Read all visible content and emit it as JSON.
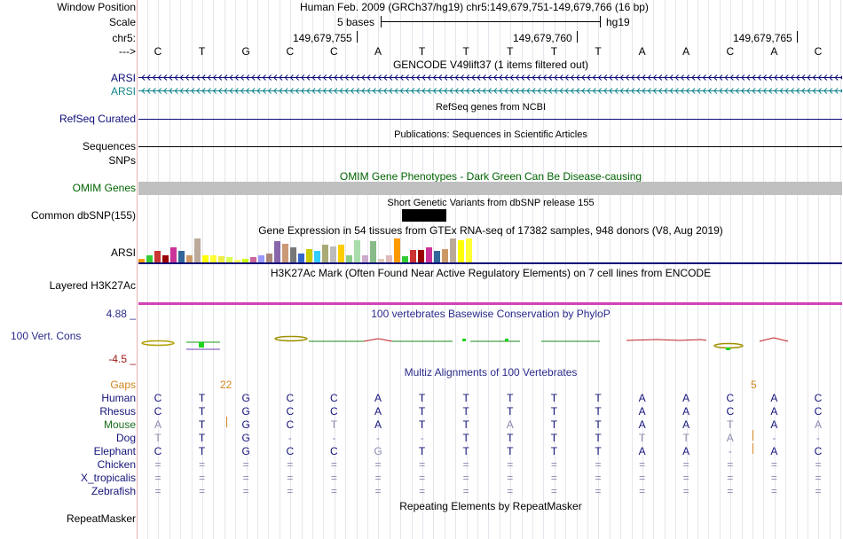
{
  "header": {
    "window_position_label": "Window Position",
    "scale_label": "Scale",
    "chrom_label": "chr5:",
    "strand_label": "--->",
    "position_text": "Human Feb. 2009 (GRCh37/hg19)   chr5:149,679,751-149,679,766 (16 bp)",
    "scale_text": "5 bases",
    "assembly": "hg19",
    "coords": [
      "149,679,755",
      "149,679,760",
      "149,679,765"
    ]
  },
  "bases": [
    "C",
    "T",
    "G",
    "C",
    "C",
    "A",
    "T",
    "T",
    "T",
    "T",
    "T",
    "A",
    "A",
    "C",
    "A",
    "C"
  ],
  "tracks": {
    "gencode_title": "GENCODE V49lift37 (1 items filtered out)",
    "gencode_items": [
      "ARSI",
      "ARSI"
    ],
    "refseq_label": "RefSeq Curated",
    "refseq_title": "RefSeq genes from NCBI",
    "sequences_label": "Sequences",
    "sequences_title": "Publications: Sequences in Scientific Articles",
    "snps_label": "SNPs",
    "omim_label": "OMIM Genes",
    "omim_title": "OMIM Gene Phenotypes - Dark Green Can Be Disease-causing",
    "dbsnp_label": "Common dbSNP(155)",
    "dbsnp_title": "Short Genetic Variants from dbSNP release 155",
    "gtex_title": "Gene Expression in 54 tissues from GTEx RNA-seq of 17382 samples, 948 donors (V8, Aug 2019)",
    "gtex_label": "ARSI",
    "h3k27ac_title": "H3K27Ac Mark (Often Found Near Active Regulatory Elements) on 7 cell lines from ENCODE",
    "h3k27ac_label": "Layered H3K27Ac",
    "cons_title": "100 vertebrates Basewise Conservation by PhyloP",
    "cons_label": "100 Vert. Cons",
    "cons_max": "4.88 _",
    "cons_min": "-4.5 _",
    "multiz_title": "Multiz Alignments of 100 Vertebrates",
    "gaps_label": "Gaps",
    "gap_values": [
      "22",
      "5"
    ],
    "repeat_label": "RepeatMasker",
    "repeat_title": "Repeating Elements by RepeatMasker"
  },
  "alignment": [
    {
      "species": "Human",
      "bases": [
        "C",
        "T",
        "G",
        "C",
        "C",
        "A",
        "T",
        "T",
        "T",
        "T",
        "T",
        "A",
        "A",
        "C",
        "A",
        "C"
      ]
    },
    {
      "species": "Rhesus",
      "bases": [
        "C",
        "T",
        "G",
        "C",
        "C",
        "A",
        "T",
        "T",
        "T",
        "T",
        "T",
        "A",
        "A",
        "C",
        "A",
        "C"
      ]
    },
    {
      "species": "Mouse",
      "bases": [
        "A",
        "T",
        "G",
        "C",
        "T",
        "A",
        "T",
        "T",
        "A",
        "T",
        "T",
        "A",
        "A",
        "T",
        "A",
        "A"
      ]
    },
    {
      "species": "Dog",
      "bases": [
        "T",
        "T",
        "G",
        "-",
        "-",
        "-",
        "-",
        "T",
        "T",
        "T",
        "T",
        "T",
        "T",
        "A",
        "-",
        "-"
      ]
    },
    {
      "species": "Elephant",
      "bases": [
        "C",
        "T",
        "G",
        "C",
        "C",
        "G",
        "T",
        "T",
        "T",
        "T",
        "T",
        "A",
        "A",
        "-",
        "A",
        "C"
      ]
    },
    {
      "species": "Chicken",
      "bases": [
        "=",
        "=",
        "=",
        "=",
        "=",
        "=",
        "=",
        "=",
        "=",
        "=",
        "=",
        "=",
        "=",
        "=",
        "=",
        "="
      ]
    },
    {
      "species": "X_tropicalis",
      "bases": [
        "=",
        "=",
        "=",
        "=",
        "=",
        "=",
        "=",
        "=",
        "=",
        "=",
        "=",
        "=",
        "=",
        "=",
        "=",
        "="
      ]
    },
    {
      "species": "Zebrafish",
      "bases": [
        "=",
        "=",
        "=",
        "=",
        "=",
        "=",
        "=",
        "=",
        "=",
        "=",
        "=",
        "=",
        "=",
        "=",
        "=",
        "="
      ]
    }
  ],
  "colors": {
    "gencode_dark": "#0c0c78",
    "gencode_light": "#12858a",
    "omim": "#c0c0c0",
    "omim_text": "#006400",
    "cons_text": "#2a2a8a",
    "cons_low": "#a01414",
    "gaps": "#d2871e",
    "h3k27ac": "#d042b8",
    "species": "#14147a",
    "mouse": "#1a6e1a"
  },
  "gtex_colors": [
    "#ff9900",
    "#33cc33",
    "#cc3333",
    "#990000",
    "#cc3399",
    "#336699",
    "#cc9966",
    "#bbaa99",
    "#ffff00",
    "#ffff33",
    "#eeee44",
    "#ddff55",
    "#ffff66",
    "#ccff00",
    "#cc6699",
    "#9999ff",
    "#aa8877",
    "#8866aa",
    "#cc9977",
    "#777777",
    "#3366cc",
    "#cccc00",
    "#33ccff",
    "#aaaa77",
    "#bbbbbb",
    "#ffcc00",
    "#88cc88",
    "#aaddaa",
    "#ccaacc",
    "#88bb88",
    "#ddccbb",
    "#ddbbbb"
  ]
}
